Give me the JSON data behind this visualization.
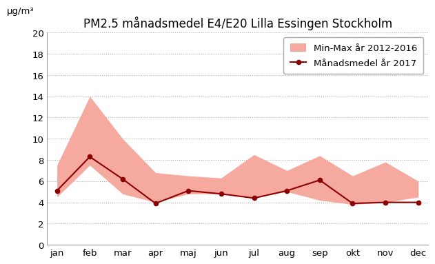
{
  "title": "PM2.5 månadsmedel E4/E20 Lilla Essingen Stockholm",
  "ylabel": "μg/m³",
  "months": [
    "jan",
    "feb",
    "mar",
    "apr",
    "maj",
    "jun",
    "jul",
    "aug",
    "sep",
    "okt",
    "nov",
    "dec"
  ],
  "min_values": [
    4.5,
    7.5,
    4.8,
    4.0,
    4.8,
    4.8,
    4.5,
    5.0,
    4.2,
    3.8,
    4.0,
    4.5
  ],
  "max_values": [
    7.5,
    14.0,
    10.0,
    6.8,
    6.5,
    6.3,
    8.5,
    7.0,
    8.4,
    6.5,
    7.8,
    6.0
  ],
  "line_2017": [
    5.1,
    8.3,
    6.2,
    3.9,
    5.1,
    4.8,
    4.4,
    5.1,
    6.1,
    3.9,
    4.0,
    4.0
  ],
  "fill_color": "#f5a99f",
  "line_color": "#8b0000",
  "ylim": [
    0,
    20
  ],
  "yticks": [
    0,
    2,
    4,
    6,
    8,
    10,
    12,
    14,
    16,
    18,
    20
  ],
  "legend_fill_label": "Min-Max år 2012-2016",
  "legend_line_label": "Månadsmedel år 2017",
  "grid_color": "#aaaaaa",
  "title_fontsize": 12,
  "axis_fontsize": 9.5,
  "legend_fontsize": 9.5
}
